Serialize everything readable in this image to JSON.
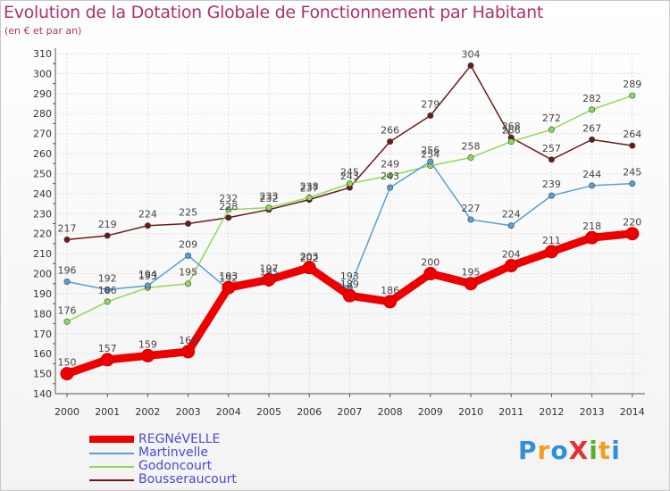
{
  "chart_data": {
    "type": "line",
    "title": "Evolution de la Dotation Globale de Fonctionnement par Habitant",
    "subtitle": "(en € et par an)",
    "x": [
      "2000",
      "2001",
      "2002",
      "2003",
      "2004",
      "2005",
      "2006",
      "2007",
      "2008",
      "2009",
      "2010",
      "2011",
      "2012",
      "2013",
      "2014"
    ],
    "ylim": [
      140,
      310
    ],
    "yticks": [
      140,
      150,
      160,
      170,
      180,
      190,
      200,
      210,
      220,
      230,
      240,
      250,
      260,
      270,
      280,
      290,
      300,
      310
    ],
    "series": [
      {
        "name": "REGNéVELLE",
        "color": "#ee0000",
        "values": [
          150,
          157,
          159,
          161,
          193,
          197,
          203,
          189,
          186,
          200,
          195,
          204,
          211,
          218,
          220
        ]
      },
      {
        "name": "Martinvelle",
        "color": "#5a9fd4",
        "values": [
          196,
          192,
          194,
          209,
          192,
          195,
          202,
          193,
          243,
          256,
          227,
          224,
          239,
          244,
          245
        ]
      },
      {
        "name": "Godoncourt",
        "color": "#8fd95a",
        "values": [
          176,
          186,
          193,
          195,
          232,
          233,
          238,
          245,
          249,
          254,
          258,
          266,
          272,
          282,
          289
        ]
      },
      {
        "name": "Bousseraucourt",
        "color": "#6b1a1a",
        "values": [
          217,
          219,
          224,
          225,
          228,
          232,
          237,
          243,
          266,
          279,
          304,
          268,
          257,
          267,
          264
        ]
      }
    ]
  },
  "logo": {
    "text": "ProXiti",
    "letters": [
      "P",
      "r",
      "o",
      "X",
      "i",
      "t",
      "i"
    ],
    "colors": [
      "#2f8fd8",
      "#f0a020",
      "#2f8fd8",
      "#e03030",
      "#58b030",
      "#f0a020",
      "#2f8fd8"
    ]
  }
}
